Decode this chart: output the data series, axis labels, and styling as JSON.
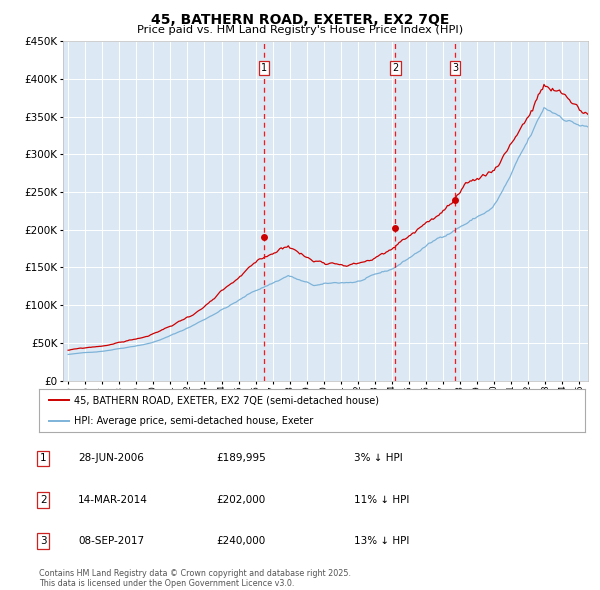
{
  "title": "45, BATHERN ROAD, EXETER, EX2 7QE",
  "subtitle": "Price paid vs. HM Land Registry's House Price Index (HPI)",
  "red_label": "45, BATHERN ROAD, EXETER, EX2 7QE (semi-detached house)",
  "blue_label": "HPI: Average price, semi-detached house, Exeter",
  "y_min": 0,
  "y_max": 450000,
  "y_ticks": [
    0,
    50000,
    100000,
    150000,
    200000,
    250000,
    300000,
    350000,
    400000,
    450000
  ],
  "sale_years": [
    2006.496,
    2014.204,
    2017.705
  ],
  "sale_prices": [
    189995,
    202000,
    240000
  ],
  "sale_labels": [
    "1",
    "2",
    "3"
  ],
  "sale_info": [
    {
      "num": "1",
      "date": "28-JUN-2006",
      "price": "£189,995",
      "pct": "3%",
      "dir": "↓"
    },
    {
      "num": "2",
      "date": "14-MAR-2014",
      "price": "£202,000",
      "pct": "11%",
      "dir": "↓"
    },
    {
      "num": "3",
      "date": "08-SEP-2017",
      "price": "£240,000",
      "pct": "13%",
      "dir": "↓"
    }
  ],
  "footnote": "Contains HM Land Registry data © Crown copyright and database right 2025.\nThis data is licensed under the Open Government Licence v3.0.",
  "bg_color": "#dce9f5",
  "grid_color": "#ffffff",
  "red_color": "#cc0000",
  "blue_color": "#7eb3d8",
  "x_start": 1994.7,
  "x_end": 2025.5,
  "x_ticks_start": 1995,
  "x_ticks_end": 2025
}
